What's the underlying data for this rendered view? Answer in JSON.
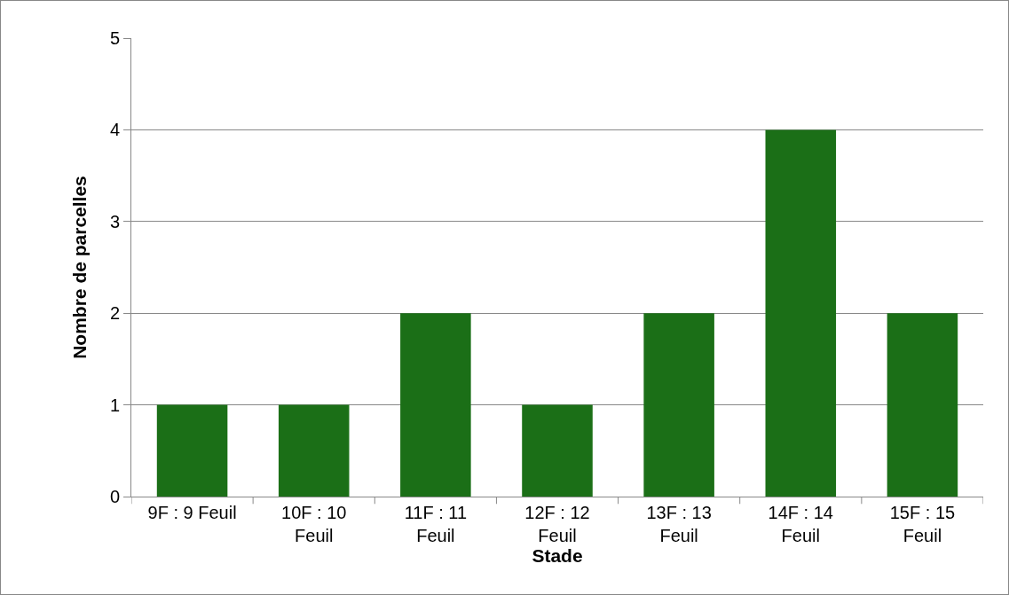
{
  "chart_data": {
    "type": "bar",
    "xlabel": "Stade",
    "ylabel": "Nombre de parcelles",
    "categories": [
      "9F : 9 Feuil",
      "10F : 10 Feuil",
      "11F : 11 Feuil",
      "12F : 12 Feuil",
      "13F : 13 Feuil",
      "14F : 14 Feuil",
      "15F : 15 Feuil"
    ],
    "values": [
      1,
      1,
      2,
      1,
      2,
      4,
      2
    ],
    "color": "#1b6f17",
    "ylim": [
      0,
      5
    ],
    "yticks": [
      0,
      1,
      2,
      3,
      4,
      5
    ],
    "grid": "y",
    "legend": false
  }
}
